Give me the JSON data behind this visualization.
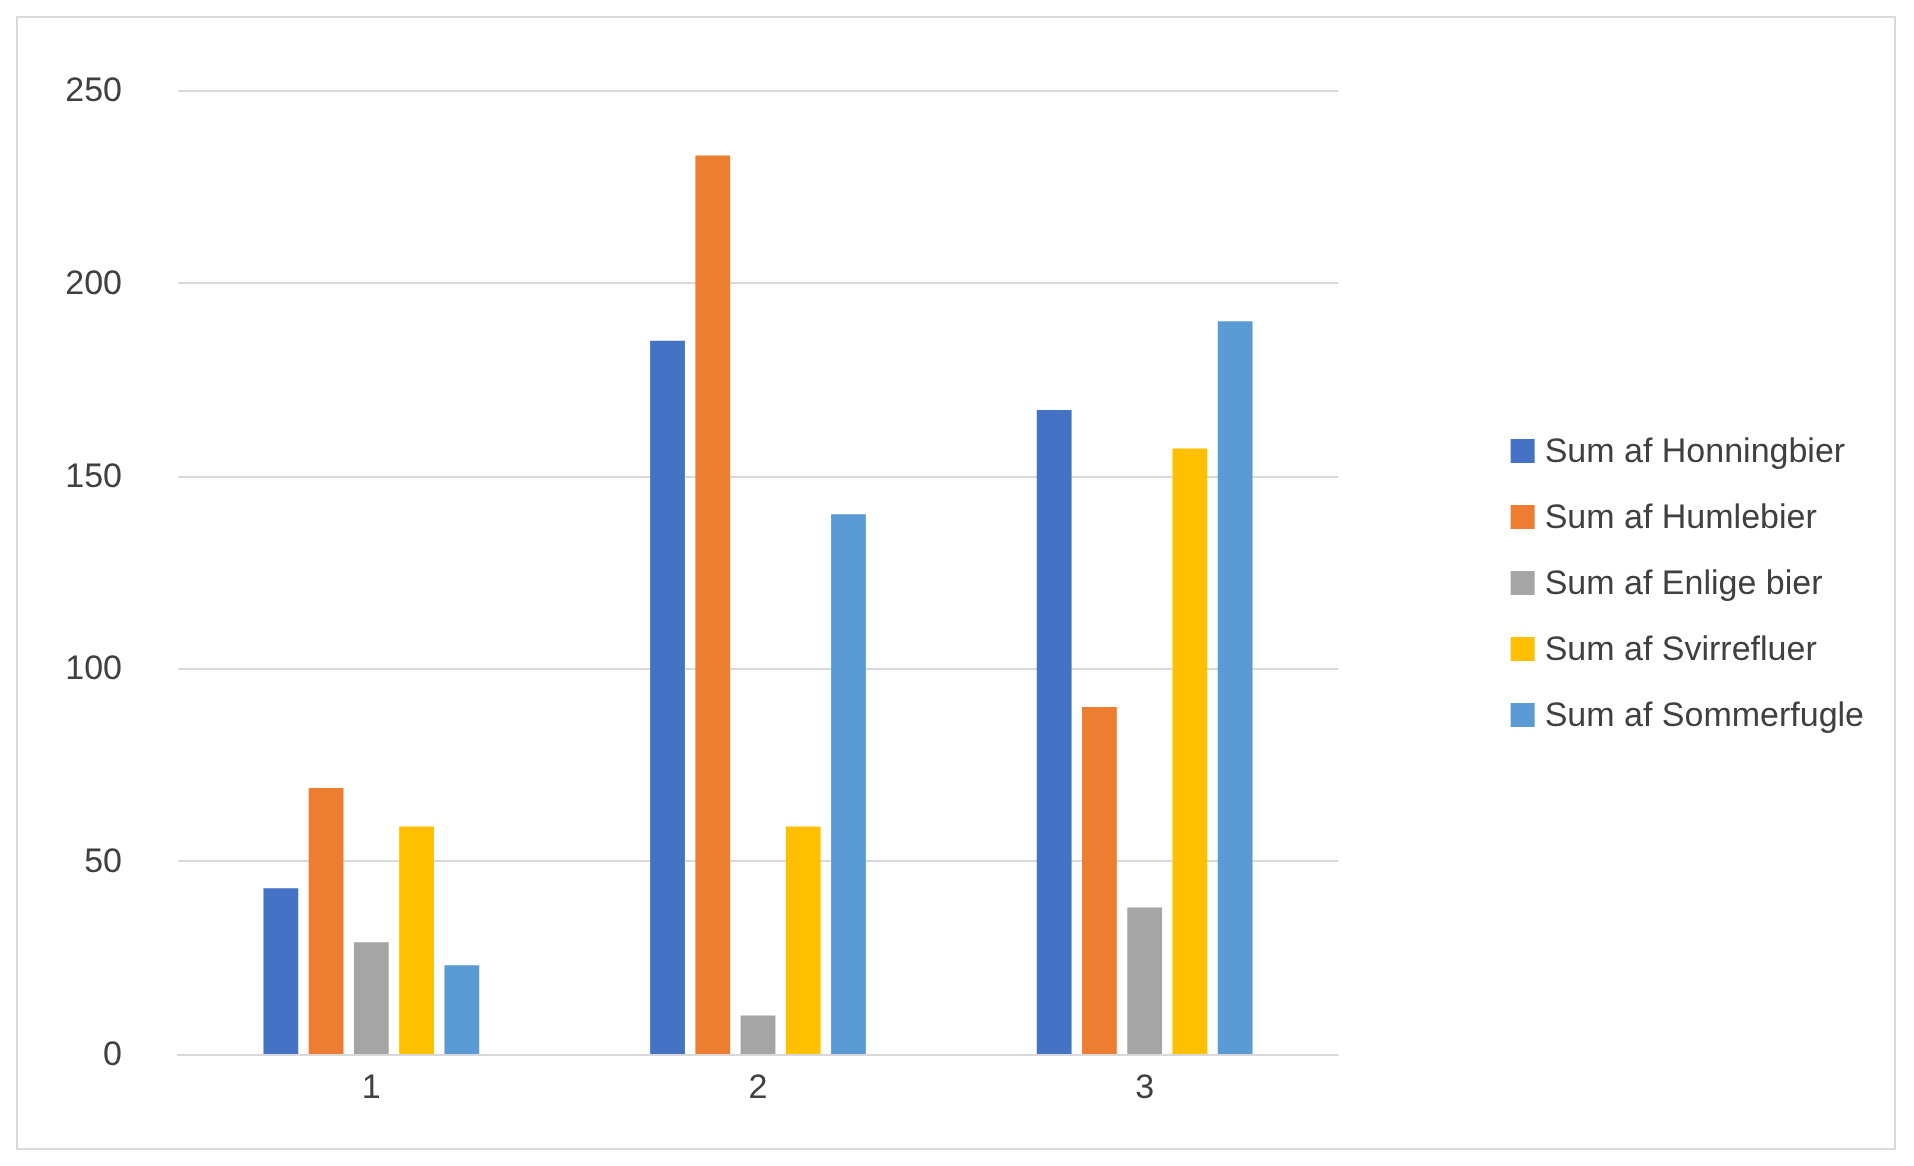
{
  "chart_data": {
    "type": "bar",
    "categories": [
      "1",
      "2",
      "3"
    ],
    "series": [
      {
        "name": "Sum af Honningbier",
        "color": "#4472c4",
        "values": [
          43,
          185,
          167
        ]
      },
      {
        "name": "Sum af Humlebier",
        "color": "#ed7d31",
        "values": [
          69,
          233,
          90
        ]
      },
      {
        "name": "Sum af Enlige bier",
        "color": "#a5a5a5",
        "values": [
          29,
          10,
          38
        ]
      },
      {
        "name": "Sum af Svirrefluer",
        "color": "#ffc000",
        "values": [
          59,
          59,
          157
        ]
      },
      {
        "name": "Sum af Sommerfugle",
        "color": "#5b9bd5",
        "values": [
          23,
          140,
          190
        ]
      }
    ],
    "ylim": [
      0,
      250
    ],
    "yticks": [
      0,
      50,
      100,
      150,
      200,
      250
    ],
    "grid": "y",
    "legend": "right"
  }
}
